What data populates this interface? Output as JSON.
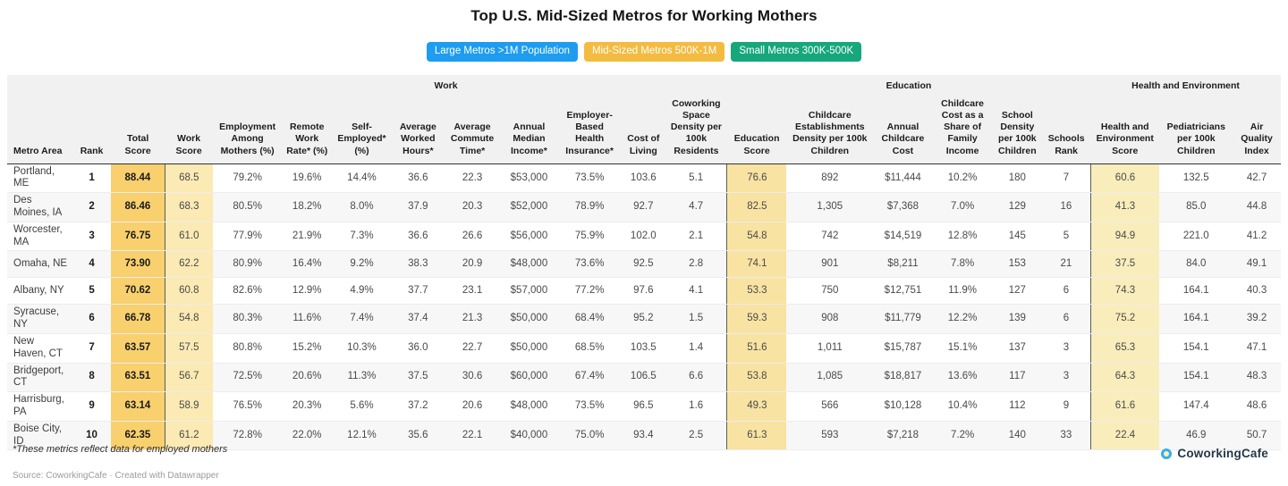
{
  "title": "Top U.S. Mid-Sized Metros for Working Mothers",
  "tabs": [
    {
      "label": "Large Metros >1M Population",
      "color": "#1e9cf0",
      "active": false
    },
    {
      "label": "Mid-Sized Metros 500K-1M",
      "color": "#f3bb40",
      "active": true
    },
    {
      "label": "Small Metros 300K-500K",
      "color": "#16a77c",
      "active": false
    }
  ],
  "table": {
    "groups": [
      {
        "label": "",
        "span": 3
      },
      {
        "label": "Work",
        "span": 10
      },
      {
        "label": "Education",
        "span": 6
      },
      {
        "label": "Health and Environment",
        "span": 3
      }
    ],
    "columns": [
      "Metro Area",
      "Rank",
      "Total Score",
      "Work Score",
      "Employment Among Mothers (%)",
      "Remote Work Rate* (%)",
      "Self-Employed* (%)",
      "Average Worked Hours*",
      "Average Commute Time*",
      "Annual Median Income*",
      "Employer-Based Health Insurance*",
      "Cost of Living",
      "Coworking Space Density per 100k Residents",
      "Education Score",
      "Childcare Establishments Density per 100k Children",
      "Annual Childcare Cost",
      "Childcare Cost as a Share of Family Income",
      "School Density per 100k Children",
      "Schools Rank",
      "Health and Environment Score",
      "Pediatricians per 100k Children",
      "Air Quality Index"
    ],
    "score_colors": {
      "total": "#f9d06e",
      "work": "#fbeab4",
      "education": "#f8e3a3",
      "health": "#f9edbb"
    },
    "rows": [
      [
        "Portland, ME",
        "1",
        "88.44",
        "68.5",
        "79.2%",
        "19.6%",
        "14.4%",
        "36.6",
        "22.3",
        "$53,000",
        "73.5%",
        "103.6",
        "5.1",
        "76.6",
        "892",
        "$11,444",
        "10.2%",
        "180",
        "7",
        "60.6",
        "132.5",
        "42.7"
      ],
      [
        "Des Moines, IA",
        "2",
        "86.46",
        "68.3",
        "80.5%",
        "18.2%",
        "8.0%",
        "37.9",
        "20.3",
        "$52,000",
        "78.9%",
        "92.7",
        "4.7",
        "82.5",
        "1,305",
        "$7,368",
        "7.0%",
        "129",
        "16",
        "41.3",
        "85.0",
        "44.8"
      ],
      [
        "Worcester, MA",
        "3",
        "76.75",
        "61.0",
        "77.9%",
        "21.9%",
        "7.3%",
        "36.6",
        "26.6",
        "$56,000",
        "75.9%",
        "102.0",
        "2.1",
        "54.8",
        "742",
        "$14,519",
        "12.8%",
        "145",
        "5",
        "94.9",
        "221.0",
        "41.2"
      ],
      [
        "Omaha, NE",
        "4",
        "73.90",
        "62.2",
        "80.9%",
        "16.4%",
        "9.2%",
        "38.3",
        "20.9",
        "$48,000",
        "73.6%",
        "92.5",
        "2.8",
        "74.1",
        "901",
        "$8,211",
        "7.8%",
        "153",
        "21",
        "37.5",
        "84.0",
        "49.1"
      ],
      [
        "Albany, NY",
        "5",
        "70.62",
        "60.8",
        "82.6%",
        "12.9%",
        "4.9%",
        "37.7",
        "23.1",
        "$57,000",
        "77.2%",
        "97.6",
        "4.1",
        "53.3",
        "750",
        "$12,751",
        "11.9%",
        "127",
        "6",
        "74.3",
        "164.1",
        "40.3"
      ],
      [
        "Syracuse, NY",
        "6",
        "66.78",
        "54.8",
        "80.3%",
        "11.6%",
        "7.4%",
        "37.4",
        "21.3",
        "$50,000",
        "68.4%",
        "95.2",
        "1.5",
        "59.3",
        "908",
        "$11,779",
        "12.2%",
        "139",
        "6",
        "75.2",
        "164.1",
        "39.2"
      ],
      [
        "New Haven, CT",
        "7",
        "63.57",
        "57.5",
        "80.8%",
        "15.2%",
        "10.3%",
        "36.0",
        "22.7",
        "$50,000",
        "68.5%",
        "103.5",
        "1.4",
        "51.6",
        "1,011",
        "$15,787",
        "15.1%",
        "137",
        "3",
        "65.3",
        "154.1",
        "47.1"
      ],
      [
        "Bridgeport, CT",
        "8",
        "63.51",
        "56.7",
        "72.5%",
        "20.6%",
        "11.3%",
        "37.5",
        "30.6",
        "$60,000",
        "67.4%",
        "106.5",
        "6.6",
        "53.8",
        "1,085",
        "$18,817",
        "13.6%",
        "117",
        "3",
        "64.3",
        "154.1",
        "48.3"
      ],
      [
        "Harrisburg, PA",
        "9",
        "63.14",
        "58.9",
        "76.5%",
        "20.3%",
        "5.6%",
        "37.2",
        "20.6",
        "$48,000",
        "73.5%",
        "96.5",
        "1.6",
        "49.3",
        "566",
        "$10,128",
        "10.4%",
        "112",
        "9",
        "61.6",
        "147.4",
        "48.6"
      ],
      [
        "Boise City, ID",
        "10",
        "62.35",
        "61.2",
        "72.8%",
        "22.0%",
        "12.1%",
        "35.6",
        "22.1",
        "$40,000",
        "75.0%",
        "93.4",
        "2.5",
        "61.3",
        "593",
        "$7,218",
        "7.2%",
        "140",
        "33",
        "22.4",
        "46.9",
        "50.7"
      ]
    ]
  },
  "footnote": "*These metrics reflect data for employed mothers",
  "source": {
    "prefix": "Source: ",
    "name": "CoworkingCafe",
    "separator": " · ",
    "credit": "Created with Datawrapper"
  },
  "logo": {
    "text": "CoworkingCafe"
  },
  "chart_data": {
    "type": "table",
    "title": "Top U.S. Mid-Sized Metros for Working Mothers",
    "categories": [
      "Portland, ME",
      "Des Moines, IA",
      "Worcester, MA",
      "Omaha, NE",
      "Albany, NY",
      "Syracuse, NY",
      "New Haven, CT",
      "Bridgeport, CT",
      "Harrisburg, PA",
      "Boise City, ID"
    ],
    "series": [
      {
        "name": "Rank",
        "values": [
          1,
          2,
          3,
          4,
          5,
          6,
          7,
          8,
          9,
          10
        ]
      },
      {
        "name": "Total Score",
        "values": [
          88.44,
          86.46,
          76.75,
          73.9,
          70.62,
          66.78,
          63.57,
          63.51,
          63.14,
          62.35
        ]
      },
      {
        "name": "Work Score",
        "values": [
          68.5,
          68.3,
          61.0,
          62.2,
          60.8,
          54.8,
          57.5,
          56.7,
          58.9,
          61.2
        ]
      },
      {
        "name": "Education Score",
        "values": [
          76.6,
          82.5,
          54.8,
          74.1,
          53.3,
          59.3,
          51.6,
          53.8,
          49.3,
          61.3
        ]
      },
      {
        "name": "Health and Environment Score",
        "values": [
          60.6,
          41.3,
          94.9,
          37.5,
          74.3,
          75.2,
          65.3,
          64.3,
          61.6,
          22.4
        ]
      }
    ]
  }
}
